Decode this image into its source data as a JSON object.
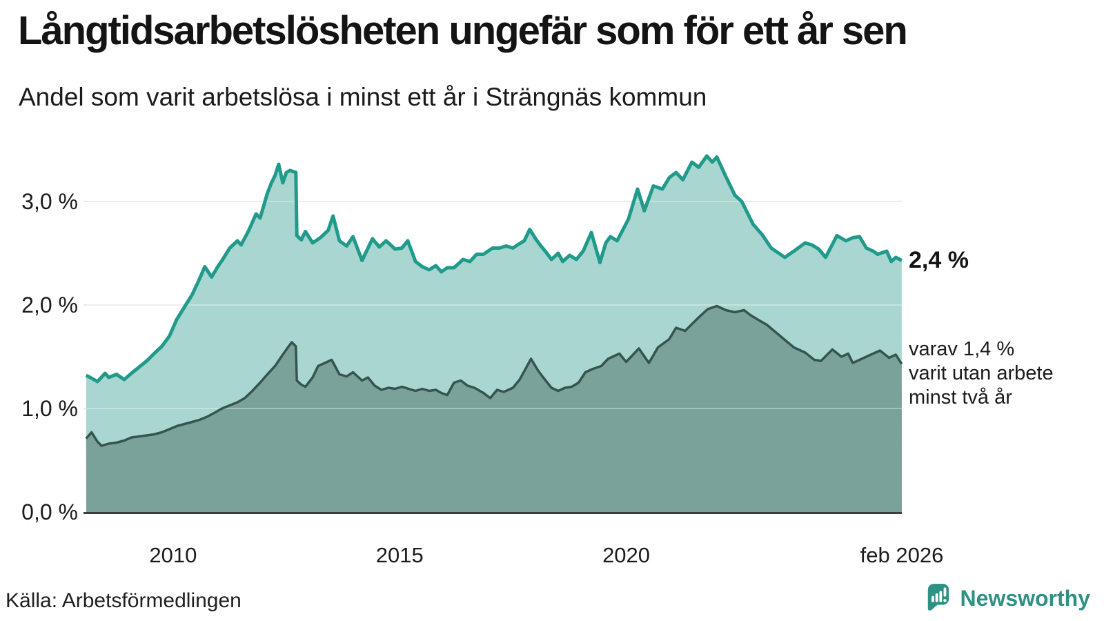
{
  "colors": {
    "background": "#ffffff",
    "grid": "#e5e5e9",
    "grid_overlay": "rgba(255,255,255,0.32)",
    "baseline": "#3a403e",
    "accent_teal": "#1f9a8b",
    "brand_teal": "#2d9184",
    "text": "#141414"
  },
  "footer": {
    "source": "Källa: Arbetsförmedlingen",
    "brand": "Newsworthy"
  },
  "chart_data": {
    "type": "area",
    "title": "Långtidsarbetslösheten ungefär som för ett år sen",
    "subtitle": "Andel som varit arbetslösa i minst ett år i Strängnäs kommun",
    "source": "Källa: Arbetsförmedlingen",
    "unit": "%",
    "grid": true,
    "legend_position": "right-edge-annotations",
    "x_range": [
      2008.083,
      2026.083
    ],
    "ylim": [
      0,
      3.6
    ],
    "y_ticks": [
      {
        "value": 0,
        "label": "0,0 %"
      },
      {
        "value": 1,
        "label": "1,0 %"
      },
      {
        "value": 2,
        "label": "2,0 %"
      },
      {
        "value": 3,
        "label": "3,0 %"
      }
    ],
    "x_ticks": [
      {
        "value": 2010,
        "label": "2010"
      },
      {
        "value": 2015,
        "label": "2015"
      },
      {
        "value": 2020,
        "label": "2020"
      },
      {
        "value": 2026.083,
        "label": "feb 2026"
      }
    ],
    "annotations": {
      "primary": {
        "text": "2,4 %",
        "value": 2.43
      },
      "secondary": {
        "lines": [
          "varav 1,4 %",
          "varit utan arbete",
          "minst två år"
        ],
        "value": 1.43
      }
    },
    "series": [
      {
        "name": "Andel arbetslösa minst ett år",
        "color": "#1f9a8b",
        "fill": "#a9d6d0",
        "stroke_width": 5,
        "points": [
          [
            2008.08,
            1.32
          ],
          [
            2008.17,
            1.3
          ],
          [
            2008.33,
            1.26
          ],
          [
            2008.5,
            1.34
          ],
          [
            2008.58,
            1.3
          ],
          [
            2008.75,
            1.33
          ],
          [
            2008.92,
            1.28
          ],
          [
            2009.08,
            1.34
          ],
          [
            2009.25,
            1.4
          ],
          [
            2009.42,
            1.46
          ],
          [
            2009.58,
            1.53
          ],
          [
            2009.75,
            1.6
          ],
          [
            2009.92,
            1.7
          ],
          [
            2010.08,
            1.86
          ],
          [
            2010.25,
            1.98
          ],
          [
            2010.42,
            2.1
          ],
          [
            2010.58,
            2.25
          ],
          [
            2010.7,
            2.37
          ],
          [
            2010.85,
            2.27
          ],
          [
            2011.0,
            2.38
          ],
          [
            2011.08,
            2.43
          ],
          [
            2011.25,
            2.55
          ],
          [
            2011.42,
            2.62
          ],
          [
            2011.5,
            2.58
          ],
          [
            2011.67,
            2.72
          ],
          [
            2011.83,
            2.88
          ],
          [
            2011.92,
            2.84
          ],
          [
            2012.08,
            3.08
          ],
          [
            2012.17,
            3.18
          ],
          [
            2012.25,
            3.25
          ],
          [
            2012.33,
            3.36
          ],
          [
            2012.42,
            3.18
          ],
          [
            2012.5,
            3.28
          ],
          [
            2012.58,
            3.3
          ],
          [
            2012.71,
            3.28
          ],
          [
            2012.73,
            2.67
          ],
          [
            2012.83,
            2.63
          ],
          [
            2012.92,
            2.71
          ],
          [
            2013.08,
            2.6
          ],
          [
            2013.25,
            2.65
          ],
          [
            2013.42,
            2.72
          ],
          [
            2013.53,
            2.86
          ],
          [
            2013.67,
            2.62
          ],
          [
            2013.83,
            2.57
          ],
          [
            2013.97,
            2.66
          ],
          [
            2014.17,
            2.43
          ],
          [
            2014.4,
            2.64
          ],
          [
            2014.55,
            2.56
          ],
          [
            2014.7,
            2.62
          ],
          [
            2014.9,
            2.54
          ],
          [
            2015.05,
            2.55
          ],
          [
            2015.18,
            2.62
          ],
          [
            2015.35,
            2.42
          ],
          [
            2015.5,
            2.37
          ],
          [
            2015.65,
            2.34
          ],
          [
            2015.8,
            2.38
          ],
          [
            2015.92,
            2.32
          ],
          [
            2016.05,
            2.36
          ],
          [
            2016.2,
            2.36
          ],
          [
            2016.4,
            2.44
          ],
          [
            2016.55,
            2.42
          ],
          [
            2016.7,
            2.49
          ],
          [
            2016.85,
            2.49
          ],
          [
            2017.05,
            2.55
          ],
          [
            2017.2,
            2.55
          ],
          [
            2017.35,
            2.57
          ],
          [
            2017.5,
            2.55
          ],
          [
            2017.6,
            2.58
          ],
          [
            2017.75,
            2.62
          ],
          [
            2017.87,
            2.73
          ],
          [
            2018.0,
            2.64
          ],
          [
            2018.1,
            2.58
          ],
          [
            2018.25,
            2.5
          ],
          [
            2018.35,
            2.44
          ],
          [
            2018.5,
            2.5
          ],
          [
            2018.6,
            2.42
          ],
          [
            2018.75,
            2.48
          ],
          [
            2018.9,
            2.44
          ],
          [
            2019.05,
            2.52
          ],
          [
            2019.23,
            2.7
          ],
          [
            2019.42,
            2.41
          ],
          [
            2019.55,
            2.6
          ],
          [
            2019.65,
            2.66
          ],
          [
            2019.8,
            2.62
          ],
          [
            2020.05,
            2.83
          ],
          [
            2020.25,
            3.12
          ],
          [
            2020.4,
            2.91
          ],
          [
            2020.6,
            3.15
          ],
          [
            2020.8,
            3.12
          ],
          [
            2020.95,
            3.23
          ],
          [
            2021.1,
            3.28
          ],
          [
            2021.25,
            3.21
          ],
          [
            2021.45,
            3.38
          ],
          [
            2021.6,
            3.33
          ],
          [
            2021.78,
            3.44
          ],
          [
            2021.9,
            3.38
          ],
          [
            2022.0,
            3.43
          ],
          [
            2022.2,
            3.24
          ],
          [
            2022.4,
            3.06
          ],
          [
            2022.55,
            3.0
          ],
          [
            2022.8,
            2.78
          ],
          [
            2023.0,
            2.68
          ],
          [
            2023.2,
            2.55
          ],
          [
            2023.5,
            2.46
          ],
          [
            2023.7,
            2.52
          ],
          [
            2023.95,
            2.6
          ],
          [
            2024.1,
            2.58
          ],
          [
            2024.25,
            2.54
          ],
          [
            2024.4,
            2.46
          ],
          [
            2024.65,
            2.67
          ],
          [
            2024.85,
            2.62
          ],
          [
            2025.0,
            2.65
          ],
          [
            2025.15,
            2.66
          ],
          [
            2025.3,
            2.55
          ],
          [
            2025.45,
            2.52
          ],
          [
            2025.55,
            2.49
          ],
          [
            2025.75,
            2.52
          ],
          [
            2025.85,
            2.42
          ],
          [
            2025.95,
            2.46
          ],
          [
            2026.08,
            2.43
          ]
        ]
      },
      {
        "name": "varav utan arbete minst två år",
        "color": "#35544e",
        "fill": "#7aa29b",
        "stroke_width": 3.5,
        "points": [
          [
            2008.08,
            0.71
          ],
          [
            2008.2,
            0.77
          ],
          [
            2008.33,
            0.68
          ],
          [
            2008.42,
            0.64
          ],
          [
            2008.58,
            0.66
          ],
          [
            2008.75,
            0.67
          ],
          [
            2008.92,
            0.69
          ],
          [
            2009.08,
            0.72
          ],
          [
            2009.25,
            0.73
          ],
          [
            2009.42,
            0.74
          ],
          [
            2009.58,
            0.75
          ],
          [
            2009.75,
            0.77
          ],
          [
            2009.92,
            0.8
          ],
          [
            2010.08,
            0.83
          ],
          [
            2010.25,
            0.85
          ],
          [
            2010.42,
            0.87
          ],
          [
            2010.58,
            0.89
          ],
          [
            2010.75,
            0.92
          ],
          [
            2010.92,
            0.96
          ],
          [
            2011.08,
            1.0
          ],
          [
            2011.25,
            1.03
          ],
          [
            2011.42,
            1.06
          ],
          [
            2011.58,
            1.1
          ],
          [
            2011.75,
            1.17
          ],
          [
            2011.92,
            1.25
          ],
          [
            2012.08,
            1.33
          ],
          [
            2012.25,
            1.41
          ],
          [
            2012.42,
            1.52
          ],
          [
            2012.55,
            1.6
          ],
          [
            2012.62,
            1.64
          ],
          [
            2012.71,
            1.6
          ],
          [
            2012.73,
            1.27
          ],
          [
            2012.83,
            1.23
          ],
          [
            2012.92,
            1.21
          ],
          [
            2013.08,
            1.3
          ],
          [
            2013.2,
            1.41
          ],
          [
            2013.35,
            1.44
          ],
          [
            2013.5,
            1.47
          ],
          [
            2013.67,
            1.33
          ],
          [
            2013.83,
            1.31
          ],
          [
            2013.97,
            1.35
          ],
          [
            2014.17,
            1.27
          ],
          [
            2014.3,
            1.3
          ],
          [
            2014.45,
            1.22
          ],
          [
            2014.6,
            1.18
          ],
          [
            2014.75,
            1.2
          ],
          [
            2014.9,
            1.19
          ],
          [
            2015.05,
            1.21
          ],
          [
            2015.2,
            1.19
          ],
          [
            2015.35,
            1.17
          ],
          [
            2015.5,
            1.19
          ],
          [
            2015.65,
            1.17
          ],
          [
            2015.8,
            1.18
          ],
          [
            2015.92,
            1.15
          ],
          [
            2016.05,
            1.13
          ],
          [
            2016.2,
            1.25
          ],
          [
            2016.35,
            1.27
          ],
          [
            2016.5,
            1.22
          ],
          [
            2016.65,
            1.2
          ],
          [
            2016.85,
            1.15
          ],
          [
            2017.0,
            1.1
          ],
          [
            2017.15,
            1.18
          ],
          [
            2017.3,
            1.16
          ],
          [
            2017.5,
            1.2
          ],
          [
            2017.65,
            1.28
          ],
          [
            2017.75,
            1.36
          ],
          [
            2017.9,
            1.48
          ],
          [
            2018.05,
            1.37
          ],
          [
            2018.15,
            1.31
          ],
          [
            2018.35,
            1.2
          ],
          [
            2018.5,
            1.17
          ],
          [
            2018.65,
            1.2
          ],
          [
            2018.8,
            1.21
          ],
          [
            2018.95,
            1.25
          ],
          [
            2019.1,
            1.35
          ],
          [
            2019.25,
            1.38
          ],
          [
            2019.45,
            1.41
          ],
          [
            2019.6,
            1.48
          ],
          [
            2019.85,
            1.53
          ],
          [
            2020.0,
            1.45
          ],
          [
            2020.28,
            1.58
          ],
          [
            2020.5,
            1.44
          ],
          [
            2020.7,
            1.59
          ],
          [
            2020.95,
            1.67
          ],
          [
            2021.1,
            1.78
          ],
          [
            2021.3,
            1.75
          ],
          [
            2021.6,
            1.88
          ],
          [
            2021.8,
            1.96
          ],
          [
            2022.0,
            1.99
          ],
          [
            2022.2,
            1.95
          ],
          [
            2022.4,
            1.93
          ],
          [
            2022.6,
            1.95
          ],
          [
            2022.75,
            1.9
          ],
          [
            2022.9,
            1.86
          ],
          [
            2023.1,
            1.81
          ],
          [
            2023.4,
            1.7
          ],
          [
            2023.7,
            1.59
          ],
          [
            2023.95,
            1.54
          ],
          [
            2024.15,
            1.47
          ],
          [
            2024.3,
            1.46
          ],
          [
            2024.55,
            1.57
          ],
          [
            2024.75,
            1.5
          ],
          [
            2024.9,
            1.53
          ],
          [
            2025.0,
            1.44
          ],
          [
            2025.2,
            1.48
          ],
          [
            2025.4,
            1.52
          ],
          [
            2025.6,
            1.56
          ],
          [
            2025.8,
            1.49
          ],
          [
            2025.95,
            1.52
          ],
          [
            2026.08,
            1.43
          ]
        ]
      }
    ]
  }
}
